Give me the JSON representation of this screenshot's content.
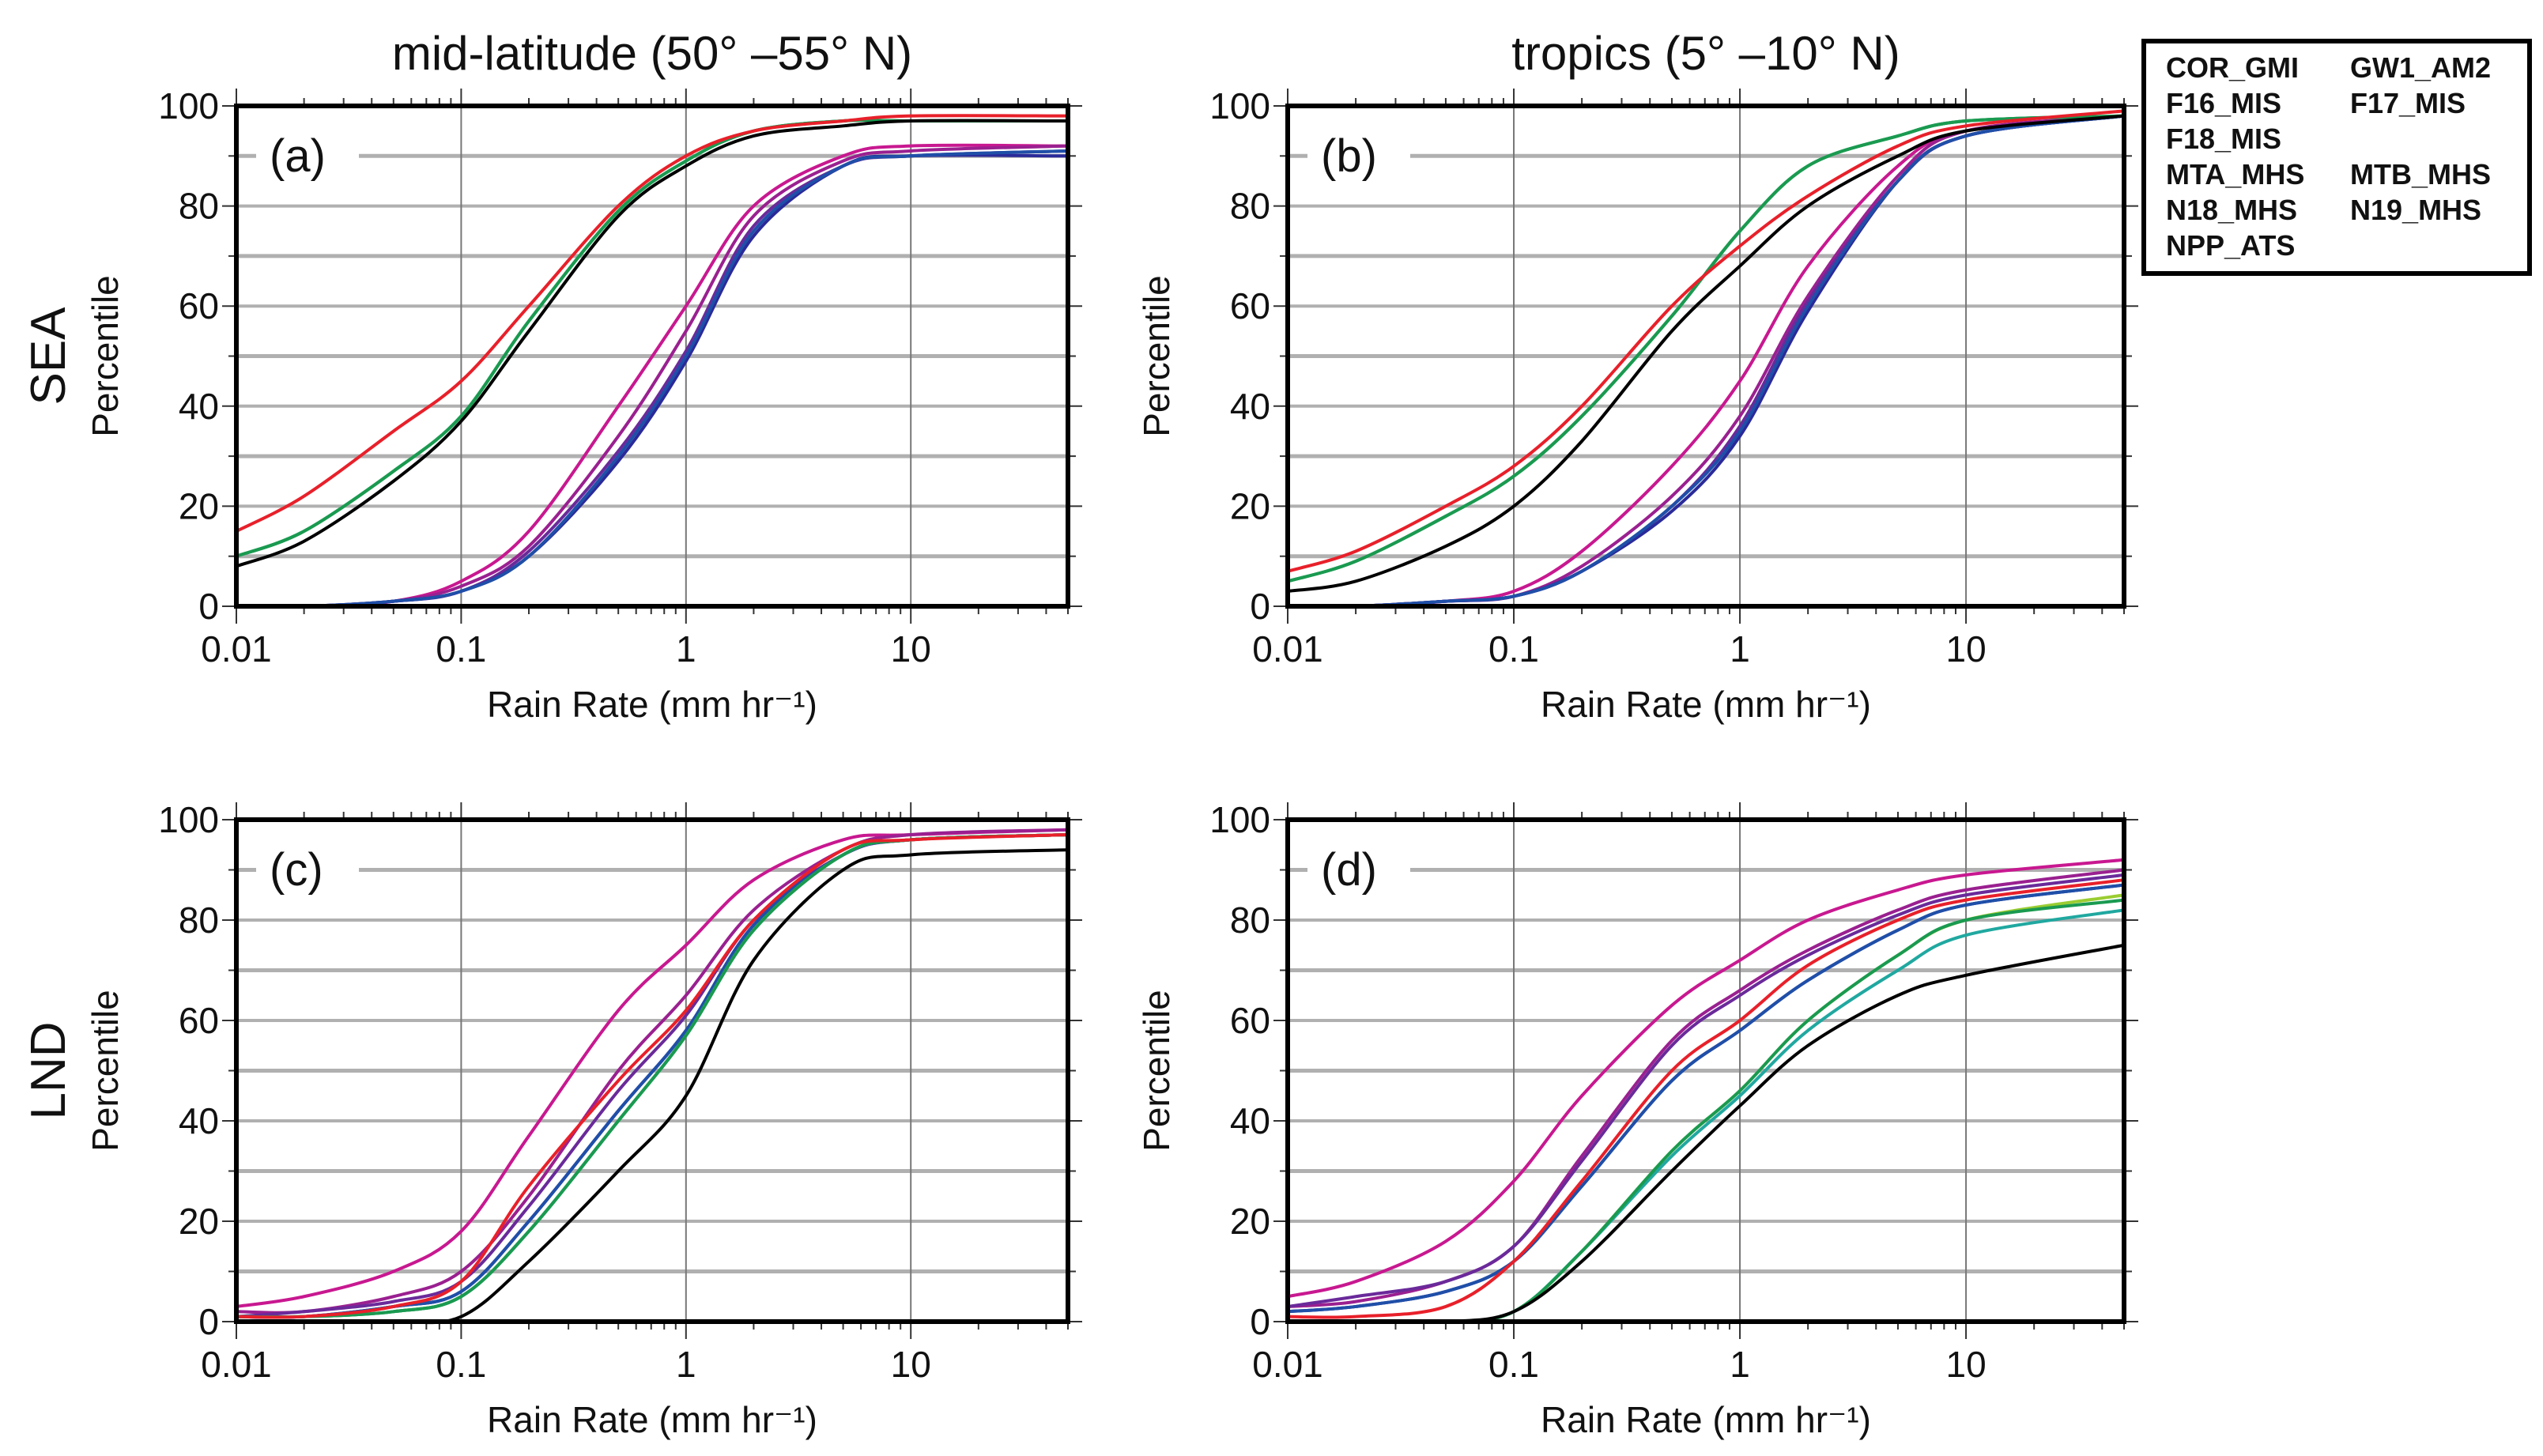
{
  "chart_data": {
    "type": "line",
    "x_scale": "log",
    "xlim": [
      0.01,
      50
    ],
    "ylim": [
      0,
      100
    ],
    "grid": true,
    "legend_placement": "top-right outside",
    "x_sample": [
      0.01,
      0.02,
      0.05,
      0.1,
      0.2,
      0.5,
      1,
      2,
      5,
      10,
      50
    ],
    "x_ticks": [
      {
        "v": 0.01,
        "label": "0.01"
      },
      {
        "v": 0.1,
        "label": "0.1"
      },
      {
        "v": 1,
        "label": "1"
      },
      {
        "v": 10,
        "label": "10"
      }
    ],
    "y_ticks": [
      {
        "v": 0,
        "label": "0"
      },
      {
        "v": 20,
        "label": "20"
      },
      {
        "v": 40,
        "label": "40"
      },
      {
        "v": 60,
        "label": "60"
      },
      {
        "v": 80,
        "label": "80"
      },
      {
        "v": 100,
        "label": "100"
      }
    ],
    "column_titles": [
      "mid-latitude (50°  –55°  N)",
      "tropics (5°  –10°  N)"
    ],
    "row_labels": [
      "SEA",
      "LND"
    ],
    "xlabel": "Rain Rate (mm hr⁻¹)",
    "ylabel": "Percentile",
    "legend": [
      {
        "name": "COR_GMI",
        "color": "#000000"
      },
      {
        "name": "GW1_AM2",
        "color": "#e8202a"
      },
      {
        "name": "F16_MIS",
        "color": "#9acd32"
      },
      {
        "name": "F17_MIS",
        "color": "#1a9a50"
      },
      {
        "name": "F18_MIS",
        "color": "#20a8a0"
      },
      {
        "name": "MTA_MHS",
        "color": "#1f4fa8"
      },
      {
        "name": "MTB_MHS",
        "color": "#2a2a9a"
      },
      {
        "name": "N18_MHS",
        "color": "#6a2a9a"
      },
      {
        "name": "N19_MHS",
        "color": "#9a2090"
      },
      {
        "name": "NPP_ATS",
        "color": "#c81890"
      }
    ],
    "panels": [
      {
        "label": "(a)",
        "series": {
          "COR_GMI": [
            8,
            13,
            25,
            37,
            55,
            78,
            88,
            94,
            96,
            97,
            97
          ],
          "GW1_AM2": [
            15,
            22,
            35,
            45,
            60,
            80,
            90,
            95,
            97,
            98,
            98
          ],
          "F16_MIS": [
            10,
            15,
            27,
            38,
            57,
            79,
            89,
            95,
            97,
            97,
            97
          ],
          "F17_MIS": [
            10,
            15,
            27,
            38,
            57,
            79,
            89,
            95,
            97,
            97,
            97
          ],
          "F18_MIS": [
            10,
            15,
            27,
            38,
            57,
            79,
            89,
            95,
            97,
            97,
            97
          ],
          "MTA_MHS": [
            0,
            0,
            1,
            3,
            10,
            30,
            50,
            75,
            88,
            90,
            91
          ],
          "MTB_MHS": [
            0,
            0,
            1,
            3,
            10,
            29,
            49,
            74,
            88,
            90,
            90
          ],
          "N18_MHS": [
            0,
            0,
            1,
            3,
            11,
            31,
            51,
            76,
            88,
            90,
            91
          ],
          "N19_MHS": [
            0,
            0,
            1,
            4,
            12,
            34,
            55,
            78,
            89,
            91,
            92
          ],
          "NPP_ATS": [
            0,
            0,
            1,
            5,
            15,
            40,
            60,
            80,
            90,
            92,
            92
          ]
        }
      },
      {
        "label": "(b)",
        "series": {
          "COR_GMI": [
            3,
            5,
            12,
            20,
            33,
            55,
            68,
            80,
            90,
            95,
            98
          ],
          "GW1_AM2": [
            7,
            11,
            20,
            28,
            40,
            60,
            72,
            82,
            92,
            96,
            99
          ],
          "F16_MIS": [
            5,
            9,
            18,
            26,
            38,
            58,
            75,
            88,
            94,
            97,
            98
          ],
          "F17_MIS": [
            5,
            9,
            18,
            26,
            38,
            58,
            75,
            88,
            94,
            97,
            98
          ],
          "F18_MIS": [
            5,
            9,
            18,
            26,
            38,
            58,
            75,
            88,
            94,
            97,
            98
          ],
          "MTA_MHS": [
            0,
            0,
            1,
            2,
            7,
            20,
            35,
            60,
            85,
            94,
            98
          ],
          "MTB_MHS": [
            0,
            0,
            1,
            2,
            7,
            19,
            34,
            59,
            85,
            94,
            98
          ],
          "N18_MHS": [
            0,
            0,
            1,
            2,
            7,
            20,
            36,
            61,
            85,
            94,
            98
          ],
          "N19_MHS": [
            0,
            0,
            1,
            2,
            8,
            22,
            38,
            62,
            86,
            95,
            98
          ],
          "NPP_ATS": [
            0,
            0,
            1,
            3,
            11,
            28,
            45,
            68,
            88,
            95,
            98
          ]
        }
      },
      {
        "label": "(c)",
        "series": {
          "COR_GMI": [
            0,
            0,
            0,
            1,
            12,
            30,
            45,
            72,
            90,
            93,
            94
          ],
          "GW1_AM2": [
            1,
            1,
            3,
            8,
            27,
            48,
            62,
            80,
            94,
            96,
            97
          ],
          "F16_MIS": [
            1,
            1,
            2,
            5,
            18,
            40,
            57,
            78,
            93,
            96,
            97
          ],
          "F17_MIS": [
            1,
            1,
            2,
            5,
            18,
            40,
            57,
            78,
            93,
            96,
            97
          ],
          "F18_MIS": [
            1,
            1,
            2,
            5,
            18,
            40,
            57,
            78,
            93,
            96,
            97
          ],
          "MTA_MHS": [
            1,
            1,
            3,
            6,
            20,
            42,
            58,
            79,
            93,
            96,
            97
          ],
          "MTB_MHS": [
            1,
            1,
            3,
            6,
            20,
            42,
            58,
            79,
            93,
            96,
            97
          ],
          "N18_MHS": [
            1,
            2,
            4,
            8,
            23,
            46,
            61,
            80,
            93,
            96,
            97
          ],
          "N19_MHS": [
            2,
            2,
            5,
            10,
            25,
            50,
            65,
            82,
            94,
            97,
            98
          ],
          "NPP_ATS": [
            3,
            5,
            10,
            18,
            37,
            62,
            75,
            88,
            96,
            97,
            98
          ]
        }
      },
      {
        "label": "(d)",
        "series": {
          "COR_GMI": [
            0,
            0,
            0,
            2,
            12,
            30,
            43,
            55,
            65,
            69,
            75
          ],
          "GW1_AM2": [
            1,
            1,
            3,
            12,
            28,
            50,
            60,
            71,
            80,
            84,
            88
          ],
          "F16_MIS": [
            0,
            0,
            0,
            2,
            14,
            34,
            46,
            60,
            73,
            80,
            85
          ],
          "F17_MIS": [
            0,
            0,
            0,
            2,
            14,
            34,
            46,
            60,
            73,
            80,
            84
          ],
          "F18_MIS": [
            0,
            0,
            0,
            2,
            14,
            33,
            45,
            58,
            70,
            77,
            82
          ],
          "MTA_MHS": [
            2,
            3,
            6,
            12,
            27,
            48,
            58,
            68,
            78,
            83,
            87
          ],
          "MTB_MHS": [
            2,
            3,
            6,
            12,
            27,
            48,
            58,
            68,
            78,
            83,
            87
          ],
          "N18_MHS": [
            3,
            5,
            8,
            15,
            32,
            55,
            65,
            73,
            81,
            85,
            89
          ],
          "N19_MHS": [
            3,
            4,
            8,
            15,
            33,
            56,
            66,
            74,
            82,
            86,
            90
          ],
          "NPP_ATS": [
            5,
            8,
            16,
            28,
            45,
            63,
            72,
            80,
            86,
            89,
            92
          ]
        }
      }
    ]
  }
}
